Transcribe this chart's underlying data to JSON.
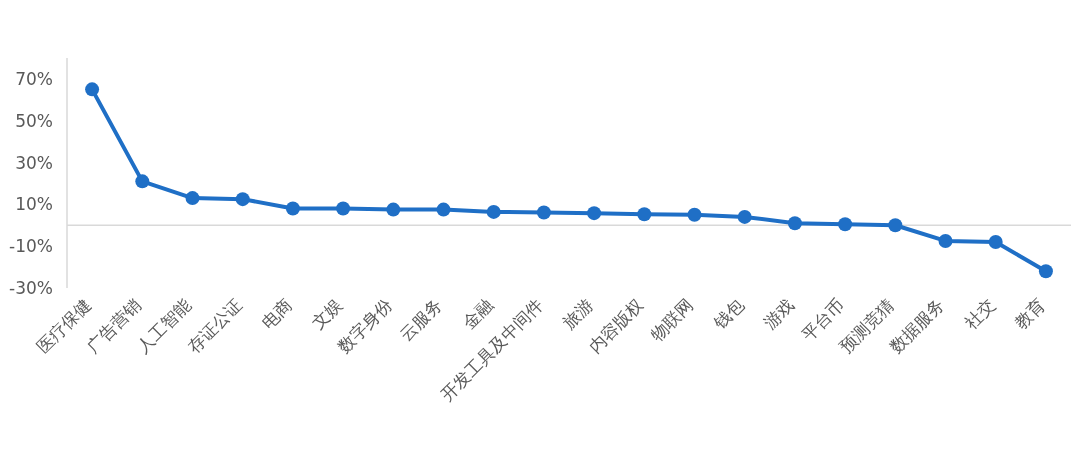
{
  "chart_data": {
    "type": "line",
    "categories": [
      "医疗保健",
      "广告营销",
      "人工智能",
      "存证公证",
      "电商",
      "文娱",
      "数字身份",
      "云服务",
      "金融",
      "开发工具及中间件",
      "旅游",
      "内容版权",
      "物联网",
      "钱包",
      "游戏",
      "平台币",
      "预测竞猜",
      "数据服务",
      "社交",
      "教育"
    ],
    "values": [
      65,
      21,
      13,
      12.5,
      8,
      8,
      7.5,
      7.5,
      6.4,
      6.1,
      5.8,
      5.3,
      5,
      4,
      1,
      0.5,
      0,
      -7.5,
      -8,
      -22
    ],
    "color": "#1f6fc6",
    "ylim": [
      -30,
      80
    ],
    "yticks": [
      {
        "value": -30,
        "label": "-30%"
      },
      {
        "value": -10,
        "label": "-10%"
      },
      {
        "value": 10,
        "label": "10%"
      },
      {
        "value": 30,
        "label": "30%"
      },
      {
        "value": 50,
        "label": "50%"
      },
      {
        "value": 70,
        "label": "70%"
      }
    ],
    "marker": "circle",
    "line_style": "solid"
  }
}
